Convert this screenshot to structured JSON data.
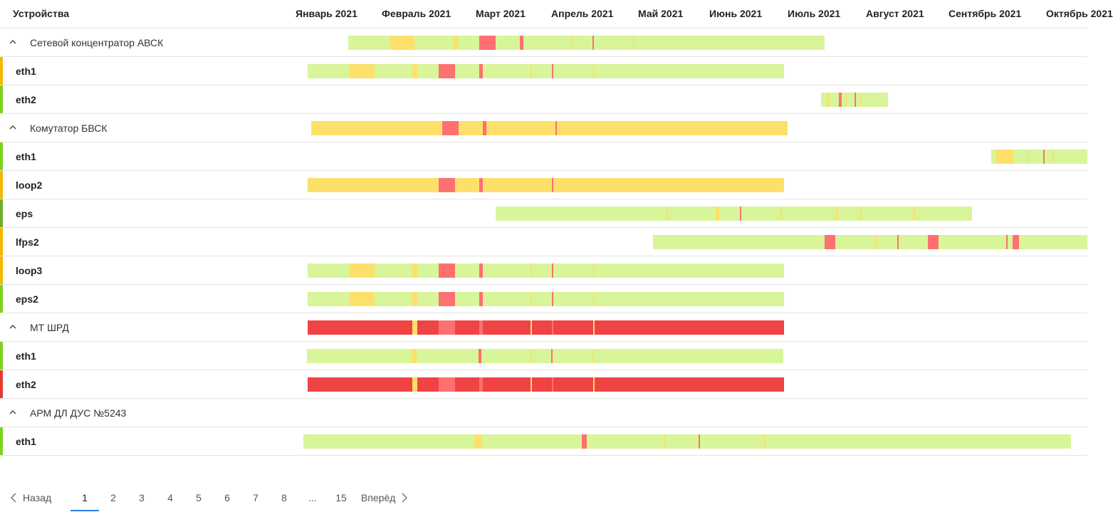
{
  "header": {
    "devices_label": "Устройства",
    "months": [
      "Январь 2021",
      "Февраль 2021",
      "Март 2021",
      "Апрель 2021",
      "Май 2021",
      "Июнь 2021",
      "Июль 2021",
      "Август 2021",
      "Сентябрь 2021",
      "Октябрь 2021"
    ]
  },
  "colors": {
    "ok": "#d8f59a",
    "warn": "#fde06a",
    "crit": "#ff7070",
    "dead": "#f04343",
    "ok_strip": "#7ed321",
    "warn_strip": "#f5b700",
    "crit_strip": "#e53935"
  },
  "rows": [
    {
      "type": "group",
      "label": "Сетевой концентратор АВСК",
      "segments": [
        {
          "s": 489,
          "e": 1158,
          "c": "ok"
        },
        {
          "s": 548,
          "e": 582,
          "c": "warn"
        },
        {
          "s": 636,
          "e": 643,
          "c": "warn"
        },
        {
          "s": 673,
          "e": 696,
          "c": "crit"
        },
        {
          "s": 730,
          "e": 735,
          "c": "crit"
        },
        {
          "s": 802,
          "e": 804,
          "c": "warn"
        },
        {
          "s": 832,
          "e": 834,
          "c": "crit"
        },
        {
          "s": 889,
          "e": 891,
          "c": "warn"
        }
      ]
    },
    {
      "type": "iface",
      "label": "eth1",
      "status": "warn",
      "segments": [
        {
          "s": 432,
          "e": 1101,
          "c": "ok"
        },
        {
          "s": 491,
          "e": 526,
          "c": "warn"
        },
        {
          "s": 579,
          "e": 586,
          "c": "warn"
        },
        {
          "s": 616,
          "e": 639,
          "c": "crit"
        },
        {
          "s": 673,
          "e": 678,
          "c": "crit"
        },
        {
          "s": 745,
          "e": 747,
          "c": "warn"
        },
        {
          "s": 775,
          "e": 777,
          "c": "crit"
        },
        {
          "s": 833,
          "e": 835,
          "c": "warn"
        }
      ]
    },
    {
      "type": "iface",
      "label": "eth2",
      "status": "ok",
      "segments": [
        {
          "s": 1153,
          "e": 1247,
          "c": "ok"
        },
        {
          "s": 1161,
          "e": 1165,
          "c": "warn"
        },
        {
          "s": 1178,
          "e": 1182,
          "c": "crit"
        },
        {
          "s": 1187,
          "e": 1189,
          "c": "warn"
        },
        {
          "s": 1200,
          "e": 1202,
          "c": "crit"
        },
        {
          "s": 1208,
          "e": 1210,
          "c": "warn"
        }
      ]
    },
    {
      "type": "group",
      "label": "Комутатор БВСК",
      "segments": [
        {
          "s": 437,
          "e": 1106,
          "c": "warn"
        },
        {
          "s": 621,
          "e": 644,
          "c": "crit"
        },
        {
          "s": 678,
          "e": 683,
          "c": "crit"
        },
        {
          "s": 780,
          "e": 782,
          "c": "crit"
        }
      ]
    },
    {
      "type": "iface",
      "label": "eth1",
      "status": "ok",
      "segments": [
        {
          "s": 1392,
          "e": 1527,
          "c": "ok"
        },
        {
          "s": 1399,
          "e": 1423,
          "c": "warn"
        },
        {
          "s": 1442,
          "e": 1444,
          "c": "warn"
        },
        {
          "s": 1465,
          "e": 1467,
          "c": "crit"
        },
        {
          "s": 1478,
          "e": 1480,
          "c": "warn"
        }
      ]
    },
    {
      "type": "iface",
      "label": "loop2",
      "status": "warn",
      "segments": [
        {
          "s": 432,
          "e": 1101,
          "c": "warn"
        },
        {
          "s": 616,
          "e": 639,
          "c": "crit"
        },
        {
          "s": 673,
          "e": 678,
          "c": "crit"
        },
        {
          "s": 775,
          "e": 777,
          "c": "crit"
        }
      ]
    },
    {
      "type": "iface",
      "label": "eps",
      "status": "ok_dark",
      "segments": [
        {
          "s": 696,
          "e": 1365,
          "c": "ok"
        },
        {
          "s": 936,
          "e": 938,
          "c": "warn"
        },
        {
          "s": 1005,
          "e": 1010,
          "c": "warn"
        },
        {
          "s": 1039,
          "e": 1041,
          "c": "crit"
        },
        {
          "s": 1096,
          "e": 1098,
          "c": "warn"
        },
        {
          "s": 1174,
          "e": 1176,
          "c": "warn"
        },
        {
          "s": 1208,
          "e": 1210,
          "c": "warn"
        },
        {
          "s": 1283,
          "e": 1285,
          "c": "warn"
        }
      ]
    },
    {
      "type": "iface",
      "label": "lfps2",
      "status": "warn",
      "segments": [
        {
          "s": 917,
          "e": 1527,
          "c": "ok"
        },
        {
          "s": 1158,
          "e": 1173,
          "c": "crit"
        },
        {
          "s": 1230,
          "e": 1232,
          "c": "warn"
        },
        {
          "s": 1260,
          "e": 1262,
          "c": "crit"
        },
        {
          "s": 1303,
          "e": 1318,
          "c": "crit"
        },
        {
          "s": 1413,
          "e": 1415,
          "c": "crit"
        },
        {
          "s": 1422,
          "e": 1431,
          "c": "crit"
        }
      ]
    },
    {
      "type": "iface",
      "label": "loop3",
      "status": "warn",
      "segments": [
        {
          "s": 432,
          "e": 1101,
          "c": "ok"
        },
        {
          "s": 491,
          "e": 526,
          "c": "warn"
        },
        {
          "s": 579,
          "e": 586,
          "c": "warn"
        },
        {
          "s": 616,
          "e": 639,
          "c": "crit"
        },
        {
          "s": 673,
          "e": 678,
          "c": "crit"
        },
        {
          "s": 745,
          "e": 747,
          "c": "warn"
        },
        {
          "s": 775,
          "e": 777,
          "c": "crit"
        },
        {
          "s": 833,
          "e": 835,
          "c": "warn"
        }
      ]
    },
    {
      "type": "iface",
      "label": "eps2",
      "status": "ok",
      "segments": [
        {
          "s": 432,
          "e": 1101,
          "c": "ok"
        },
        {
          "s": 491,
          "e": 526,
          "c": "warn"
        },
        {
          "s": 579,
          "e": 586,
          "c": "warn"
        },
        {
          "s": 616,
          "e": 639,
          "c": "crit"
        },
        {
          "s": 673,
          "e": 678,
          "c": "crit"
        },
        {
          "s": 745,
          "e": 747,
          "c": "warn"
        },
        {
          "s": 775,
          "e": 777,
          "c": "crit"
        },
        {
          "s": 833,
          "e": 835,
          "c": "warn"
        }
      ]
    },
    {
      "type": "group",
      "label": "МТ ШРД",
      "segments": [
        {
          "s": 432,
          "e": 1101,
          "c": "dead"
        },
        {
          "s": 579,
          "e": 586,
          "c": "warn"
        },
        {
          "s": 616,
          "e": 639,
          "c": "crit"
        },
        {
          "s": 673,
          "e": 678,
          "c": "crit"
        },
        {
          "s": 745,
          "e": 747,
          "c": "warn"
        },
        {
          "s": 775,
          "e": 777,
          "c": "crit"
        },
        {
          "s": 833,
          "e": 835,
          "c": "warn"
        }
      ]
    },
    {
      "type": "iface",
      "label": "eth1",
      "status": "ok",
      "segments": [
        {
          "s": 431,
          "e": 1100,
          "c": "ok"
        },
        {
          "s": 578,
          "e": 585,
          "c": "warn"
        },
        {
          "s": 672,
          "e": 676,
          "c": "crit"
        },
        {
          "s": 745,
          "e": 747,
          "c": "warn"
        },
        {
          "s": 774,
          "e": 776,
          "c": "crit"
        },
        {
          "s": 832,
          "e": 834,
          "c": "warn"
        }
      ]
    },
    {
      "type": "iface",
      "label": "eth2",
      "status": "crit",
      "segments": [
        {
          "s": 432,
          "e": 1101,
          "c": "dead"
        },
        {
          "s": 579,
          "e": 586,
          "c": "warn"
        },
        {
          "s": 616,
          "e": 639,
          "c": "crit"
        },
        {
          "s": 673,
          "e": 678,
          "c": "crit"
        },
        {
          "s": 745,
          "e": 747,
          "c": "warn"
        },
        {
          "s": 775,
          "e": 777,
          "c": "crit"
        },
        {
          "s": 833,
          "e": 835,
          "c": "warn"
        }
      ]
    },
    {
      "type": "group",
      "label": "АРМ ДЛ ДУС №5243",
      "segments": []
    },
    {
      "type": "iface",
      "label": "eth1",
      "status": "ok",
      "segments": [
        {
          "s": 426,
          "e": 1504,
          "c": "ok"
        },
        {
          "s": 666,
          "e": 677,
          "c": "warn"
        },
        {
          "s": 817,
          "e": 824,
          "c": "crit"
        },
        {
          "s": 933,
          "e": 935,
          "c": "warn"
        },
        {
          "s": 981,
          "e": 983,
          "c": "crit"
        },
        {
          "s": 1073,
          "e": 1075,
          "c": "warn"
        }
      ]
    }
  ],
  "pager": {
    "prev_label": "Назад",
    "next_label": "Вперёд",
    "pages": [
      "1",
      "2",
      "3",
      "4",
      "5",
      "6",
      "7",
      "8",
      "...",
      "15"
    ],
    "current": "1"
  }
}
